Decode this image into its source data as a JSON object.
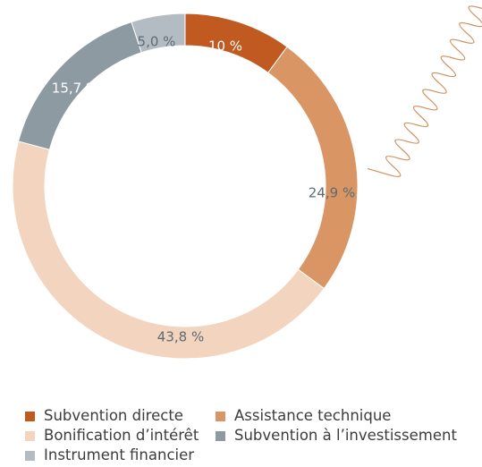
{
  "chart_data": {
    "type": "pie",
    "donut": true,
    "start_angle_deg": 0,
    "direction": "clockwise",
    "categories": [
      "Subvention directe",
      "Assistance technique",
      "Bonification d’intérêt",
      "Subvention à l’investissement",
      "Instrument financier"
    ],
    "values": [
      10,
      24.9,
      43.8,
      15.7,
      5.0
    ],
    "data_labels": [
      "10 %",
      "24,9 %",
      "43,8 %",
      "15,7 %",
      "5,0 %"
    ],
    "colors": [
      "#c15a20",
      "#d99564",
      "#f2d4bf",
      "#8d9aa2",
      "#b3bcc2"
    ],
    "label_colors": [
      "#ffffff",
      "#5f6b73",
      "#5f6b73",
      "#ffffff",
      "#5f6b73"
    ],
    "legend_position": "bottom",
    "title": "",
    "xlabel": "",
    "ylabel": ""
  },
  "decoration": {
    "zigzag_color": "#d0905f"
  },
  "legend": {
    "items": [
      {
        "label": "Subvention directe"
      },
      {
        "label": "Assistance technique"
      },
      {
        "label": "Bonification d’intérêt"
      },
      {
        "label": "Subvention à l’investissement"
      },
      {
        "label": "Instrument financier"
      }
    ]
  }
}
